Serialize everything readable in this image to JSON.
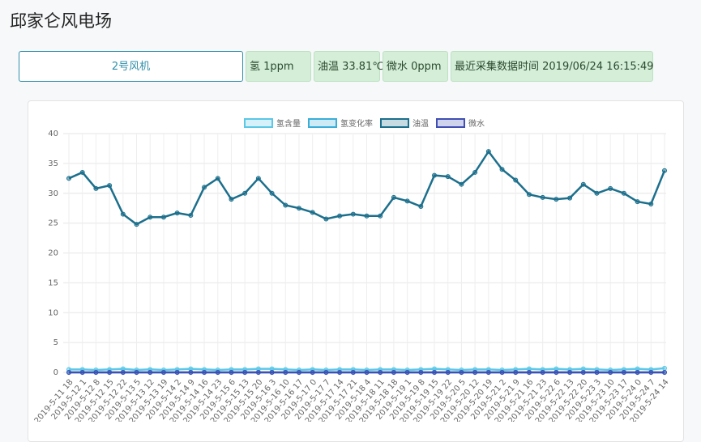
{
  "header": {
    "title": "邱家仑风电场"
  },
  "status": {
    "device": "2号风机",
    "items": [
      "氢 1ppm",
      "油温 33.81℃",
      "微水 0ppm",
      "最近采集数据时间 2019/06/24 16:15:49"
    ]
  },
  "chart_data": {
    "type": "line",
    "categories": [
      "2019-5-11 18",
      "2019-5-12 1",
      "2019-5-12 8",
      "2019-5-12 15",
      "2019-5-12 22",
      "2019-5-13 5",
      "2019-5-13 12",
      "2019-5-13 19",
      "2019-5-14 2",
      "2019-5-14 9",
      "2019-5-14 16",
      "2019-5-14 23",
      "2019-5-15 6",
      "2019-5-15 13",
      "2019-5-15 20",
      "2019-5-16 3",
      "2019-5-16 10",
      "2019-5-16 17",
      "2019-5-17 0",
      "2019-5-17 7",
      "2019-5-17 14",
      "2019-5-17 21",
      "2019-5-18 4",
      "2019-5-18 11",
      "2019-5-18 18",
      "2019-5-19 1",
      "2019-5-19 8",
      "2019-5-19 15",
      "2019-5-19 22",
      "2019-5-20 5",
      "2019-5-20 12",
      "2019-5-20 19",
      "2019-5-21 2",
      "2019-5-21 9",
      "2019-5-21 16",
      "2019-5-21 23",
      "2019-5-22 6",
      "2019-5-22 13",
      "2019-5-22 20",
      "2019-5-23 3",
      "2019-5-23 10",
      "2019-5-23 17",
      "2019-5-24 0",
      "2019-5-24 7",
      "2019-5-24 14"
    ],
    "series": [
      {
        "name": "氢含量",
        "color": "#5bc8e6",
        "values": [
          0.5,
          0.5,
          0.4,
          0.5,
          0.6,
          0.4,
          0.5,
          0.4,
          0.5,
          0.6,
          0.5,
          0.4,
          0.5,
          0.5,
          0.6,
          0.6,
          0.5,
          0.4,
          0.5,
          0.4,
          0.5,
          0.5,
          0.4,
          0.5,
          0.5,
          0.4,
          0.5,
          0.6,
          0.5,
          0.4,
          0.5,
          0.5,
          0.4,
          0.5,
          0.6,
          0.5,
          0.6,
          0.5,
          0.6,
          0.5,
          0.4,
          0.5,
          0.6,
          0.5,
          0.7
        ]
      },
      {
        "name": "氢变化率",
        "color": "#3aaed8",
        "values": [
          0,
          0,
          0,
          0,
          0,
          0,
          0,
          0,
          0,
          0,
          0,
          0,
          0,
          0,
          0,
          0,
          0,
          0,
          0,
          0,
          0,
          0,
          0,
          0,
          0,
          0,
          0,
          0,
          0,
          0,
          0,
          0,
          0,
          0,
          0,
          0,
          0,
          0,
          0,
          0,
          0,
          0,
          0,
          0,
          0
        ]
      },
      {
        "name": "油温",
        "color": "#1c6f8c",
        "values": [
          32.5,
          33.5,
          30.8,
          31.3,
          26.5,
          24.8,
          26,
          26,
          26.7,
          26.3,
          31,
          32.5,
          29,
          30,
          32.5,
          30,
          28,
          27.5,
          26.8,
          25.7,
          26.2,
          26.5,
          26.2,
          26.2,
          29.3,
          28.7,
          27.8,
          33,
          32.8,
          31.5,
          33.5,
          37,
          34,
          32.2,
          29.8,
          29.3,
          29,
          29.2,
          31.5,
          30,
          30.8,
          30,
          28.6,
          28.2,
          33.8
        ]
      },
      {
        "name": "微水",
        "color": "#3f4fb3",
        "values": [
          0,
          0,
          0,
          0,
          0,
          0,
          0,
          0,
          0,
          0,
          0,
          0,
          0,
          0,
          0,
          0,
          0,
          0,
          0,
          0,
          0,
          0,
          0,
          0,
          0,
          0,
          0,
          0,
          0,
          0,
          0,
          0,
          0,
          0,
          0,
          0,
          0,
          0,
          0,
          0,
          0,
          0,
          0,
          0,
          0
        ]
      }
    ],
    "ylim": [
      0,
      40
    ],
    "yticks": [
      0,
      5,
      10,
      15,
      20,
      25,
      30,
      35,
      40
    ],
    "grid": true
  }
}
